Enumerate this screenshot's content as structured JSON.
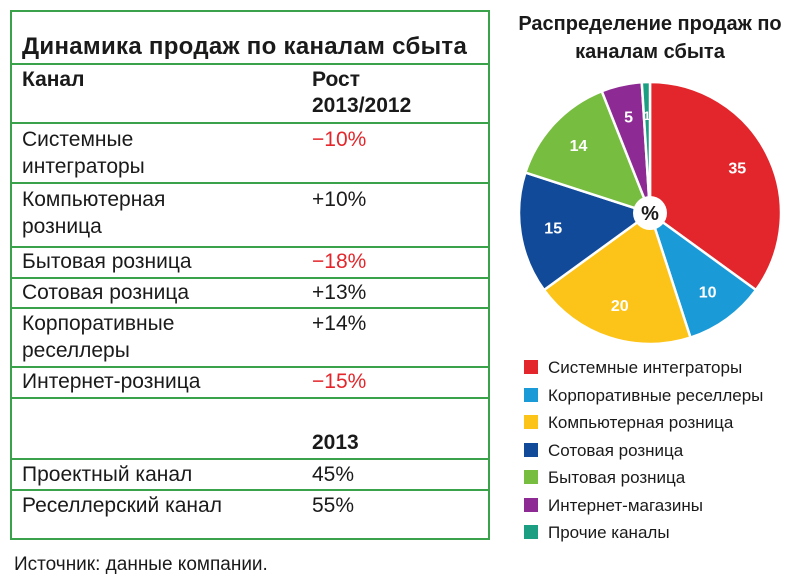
{
  "table": {
    "title": "Динамика продаж по каналам сбыта",
    "header": {
      "channel": "Канал",
      "growth_l1": "Рост",
      "growth_l2": "2013/2012"
    },
    "rows": [
      {
        "l1": "Системные",
        "l2": "интеграторы",
        "value": "−10%",
        "negative": true
      },
      {
        "l1": "Компьютерная",
        "l2": "розница",
        "value": "+10%",
        "negative": false
      },
      {
        "l1": "Бытовая розница",
        "value": "−18%",
        "negative": true
      },
      {
        "l1": "Сотовая розница",
        "value": "+13%",
        "negative": false
      },
      {
        "l1": "Корпоративные",
        "l2": "реселлеры",
        "value": "+14%",
        "negative": false
      },
      {
        "l1": "Интернет-розница",
        "value": "−15%",
        "negative": true
      }
    ],
    "year_header": "2013",
    "rows2": [
      {
        "label": "Проектный канал",
        "value": "45%"
      },
      {
        "label": "Реселлерский канал",
        "value": "55%"
      }
    ]
  },
  "source": "Источник: данные компании.",
  "colors": {
    "border": "#3aa24a",
    "negative": "#e3262b"
  },
  "chart_data": {
    "type": "pie",
    "title": "Распределение продаж по каналам сбыта",
    "center_label": "%",
    "slices": [
      {
        "label": "Системные интеграторы",
        "value": 35,
        "color": "#e3262b"
      },
      {
        "label": "Корпоративные реселлеры",
        "value": 10,
        "color": "#1a9ad6"
      },
      {
        "label": "Компьютерная розница",
        "value": 20,
        "color": "#fcc318"
      },
      {
        "label": "Сотовая розница",
        "value": 15,
        "color": "#124a9a"
      },
      {
        "label": "Бытовая розница",
        "value": 14,
        "color": "#77bd3f"
      },
      {
        "label": "Интернет-магазины",
        "value": 5,
        "color": "#8e2a94"
      },
      {
        "label": "Прочие каналы",
        "value": 1,
        "color": "#1b9e82"
      }
    ]
  }
}
